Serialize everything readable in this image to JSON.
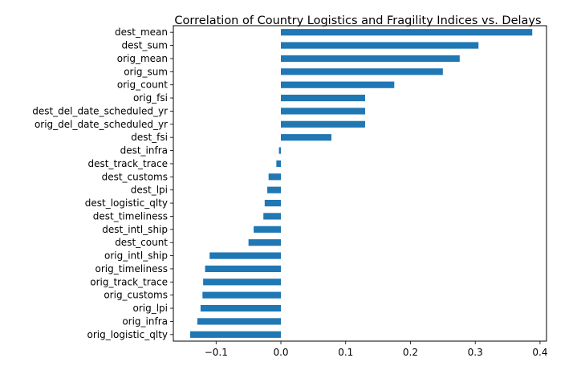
{
  "chart_data": {
    "type": "bar",
    "orientation": "horizontal",
    "title": "Correlation of Country Logistics and Fragility Indices vs. Delays",
    "xlabel": "",
    "ylabel": "",
    "bar_color": "#1f77b4",
    "grid": false,
    "xlim": [
      -0.166,
      0.41
    ],
    "xticks": [
      -0.1,
      0.0,
      0.1,
      0.2,
      0.3,
      0.4
    ],
    "xtick_labels": [
      "−0.1",
      "0.0",
      "0.1",
      "0.2",
      "0.3",
      "0.4"
    ],
    "categories": [
      "dest_mean",
      "dest_sum",
      "orig_mean",
      "orig_sum",
      "orig_count",
      "orig_fsi",
      "dest_del_date_scheduled_yr",
      "orig_del_date_scheduled_yr",
      "dest_fsi",
      "dest_infra",
      "dest_track_trace",
      "dest_customs",
      "dest_lpi",
      "dest_logistic_qlty",
      "dest_timeliness",
      "dest_intl_ship",
      "dest_count",
      "orig_intl_ship",
      "orig_timeliness",
      "orig_track_trace",
      "orig_customs",
      "orig_lpi",
      "orig_infra",
      "orig_logistic_qlty"
    ],
    "values": [
      0.388,
      0.305,
      0.276,
      0.25,
      0.175,
      0.13,
      0.13,
      0.13,
      0.078,
      -0.003,
      -0.007,
      -0.019,
      -0.021,
      -0.025,
      -0.027,
      -0.042,
      -0.05,
      -0.11,
      -0.117,
      -0.12,
      -0.121,
      -0.124,
      -0.129,
      -0.14
    ]
  }
}
